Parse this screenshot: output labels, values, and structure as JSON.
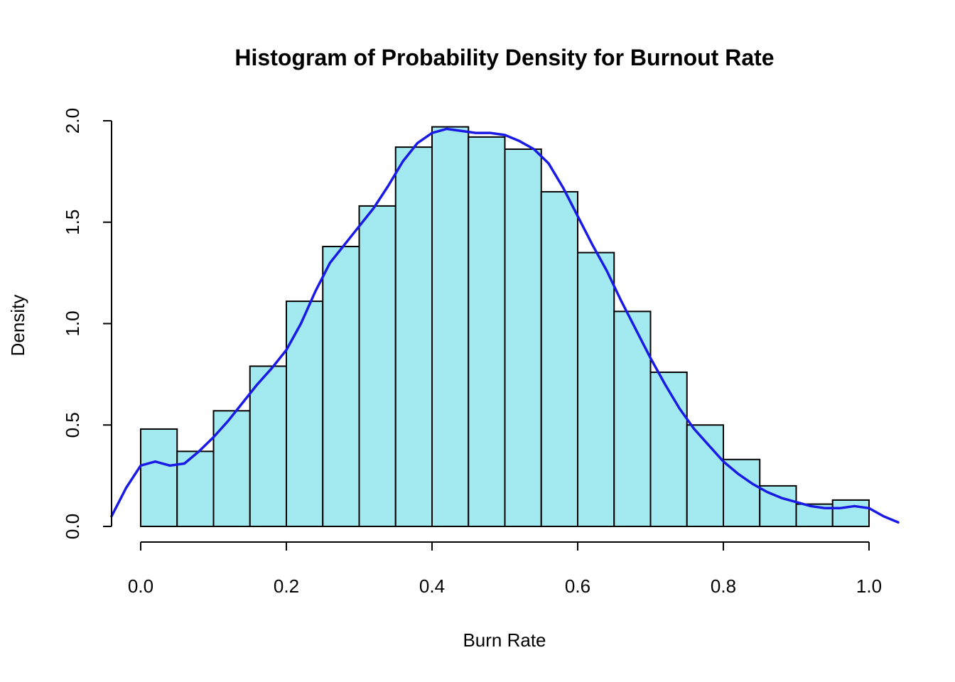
{
  "chart_data": {
    "type": "bar",
    "title": "Histogram of Probability Density for Burnout Rate",
    "xlabel": "Burn Rate",
    "ylabel": "Density",
    "xlim": [
      -0.04,
      1.04
    ],
    "ylim": [
      0,
      2.0
    ],
    "x_ticks": [
      "0.0",
      "0.2",
      "0.4",
      "0.6",
      "0.8",
      "1.0"
    ],
    "x_tick_values": [
      0.0,
      0.2,
      0.4,
      0.6,
      0.8,
      1.0
    ],
    "y_ticks": [
      "0.0",
      "0.5",
      "1.0",
      "1.5",
      "2.0"
    ],
    "y_tick_values": [
      0.0,
      0.5,
      1.0,
      1.5,
      2.0
    ],
    "bin_edges": [
      0.0,
      0.05,
      0.1,
      0.15,
      0.2,
      0.25,
      0.3,
      0.35,
      0.4,
      0.45,
      0.5,
      0.55,
      0.6,
      0.65,
      0.7,
      0.75,
      0.8,
      0.85,
      0.9,
      0.95,
      1.0
    ],
    "values": [
      0.48,
      0.37,
      0.57,
      0.79,
      1.11,
      1.38,
      1.58,
      1.87,
      1.97,
      1.92,
      1.86,
      1.65,
      1.35,
      1.06,
      0.76,
      0.5,
      0.33,
      0.2,
      0.11,
      0.13
    ],
    "bar_color": "#A3E9F0",
    "grid": false,
    "density_curve": {
      "color": "#1A1AE6",
      "x": [
        -0.04,
        -0.02,
        0.0,
        0.02,
        0.04,
        0.06,
        0.08,
        0.1,
        0.12,
        0.14,
        0.16,
        0.18,
        0.2,
        0.22,
        0.24,
        0.26,
        0.28,
        0.3,
        0.32,
        0.34,
        0.36,
        0.38,
        0.4,
        0.42,
        0.44,
        0.46,
        0.48,
        0.5,
        0.52,
        0.54,
        0.56,
        0.58,
        0.6,
        0.62,
        0.64,
        0.66,
        0.68,
        0.7,
        0.72,
        0.74,
        0.76,
        0.78,
        0.8,
        0.82,
        0.84,
        0.86,
        0.88,
        0.9,
        0.92,
        0.94,
        0.96,
        0.98,
        1.0,
        1.02,
        1.04
      ],
      "y": [
        0.05,
        0.19,
        0.3,
        0.32,
        0.3,
        0.31,
        0.37,
        0.44,
        0.52,
        0.61,
        0.7,
        0.78,
        0.87,
        1.0,
        1.16,
        1.3,
        1.39,
        1.48,
        1.57,
        1.68,
        1.8,
        1.89,
        1.94,
        1.96,
        1.95,
        1.94,
        1.94,
        1.93,
        1.9,
        1.86,
        1.79,
        1.67,
        1.53,
        1.39,
        1.26,
        1.11,
        0.97,
        0.83,
        0.7,
        0.58,
        0.48,
        0.4,
        0.32,
        0.26,
        0.21,
        0.17,
        0.14,
        0.12,
        0.1,
        0.09,
        0.09,
        0.1,
        0.09,
        0.05,
        0.02
      ]
    }
  }
}
